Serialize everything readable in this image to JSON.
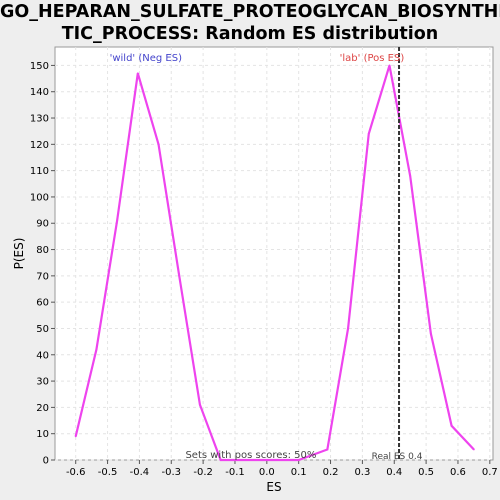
{
  "chart_data": {
    "type": "line",
    "title_line1": "GO_HEPARAN_SULFATE_PROTEOGLYCAN_BIOSYNTHE",
    "title_line2": "TIC_PROCESS: Random ES distribution",
    "xlabel": "ES",
    "ylabel": "P(ES)",
    "xlim": [
      -0.665,
      0.71
    ],
    "ylim": [
      0,
      157
    ],
    "x_ticks": [
      -0.6,
      -0.5,
      -0.4,
      -0.3,
      -0.2,
      -0.1,
      0.0,
      0.1,
      0.2,
      0.3,
      0.4,
      0.5,
      0.6,
      0.7
    ],
    "x_tick_labels": [
      "-0.6",
      "-0.5",
      "-0.4",
      "-0.3",
      "-0.2",
      "-0.1",
      "0.0",
      "0.1",
      "0.2",
      "0.3",
      "0.4",
      "0.5",
      "0.6",
      "0.7"
    ],
    "y_ticks": [
      0,
      10,
      20,
      30,
      40,
      50,
      60,
      70,
      80,
      90,
      100,
      110,
      120,
      130,
      140,
      150
    ],
    "y_tick_labels": [
      "0",
      "10",
      "20",
      "30",
      "40",
      "50",
      "60",
      "70",
      "80",
      "90",
      "100",
      "110",
      "120",
      "130",
      "140",
      "150"
    ],
    "grid": true,
    "series": [
      {
        "color": "#ee44ee",
        "x": [
          -0.6,
          -0.535,
          -0.47,
          -0.405,
          -0.34,
          -0.275,
          -0.21,
          -0.145,
          -0.08,
          0.0,
          0.1,
          0.19,
          0.255,
          0.32,
          0.385,
          0.45,
          0.515,
          0.58,
          0.65
        ],
        "y": [
          9,
          42,
          91,
          147,
          120,
          70,
          21,
          0,
          0,
          0,
          0,
          4,
          50,
          124,
          150,
          108,
          48,
          13,
          4
        ]
      }
    ],
    "neg_label": "'wild' (Neg ES)",
    "neg_label_color": "#4444cc",
    "pos_label": "'lab' (Pos ES)",
    "pos_label_color": "#dd4444",
    "real_es": 0.415,
    "real_es_label": "Real ES 0.4",
    "pos_scores_label": "Sets with pos scores: 50%"
  }
}
